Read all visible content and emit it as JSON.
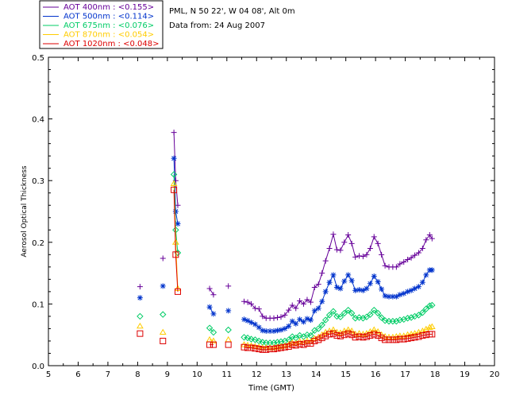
{
  "header": {
    "location": "PML, N 50 22', W 04 08', Alt 0m",
    "date_line": "Data from: 24 Aug 2007"
  },
  "legend": [
    {
      "text": "AOT  400nm : <0.155>",
      "color": "#660099"
    },
    {
      "text": "AOT  500nm : <0.114>",
      "color": "#0033cc"
    },
    {
      "text": "AOT  675nm : <0.076>",
      "color": "#00cc66"
    },
    {
      "text": "AOT  870nm : <0.054>",
      "color": "#ffcc00"
    },
    {
      "text": "AOT 1020nm : <0.048>",
      "color": "#dd0000"
    }
  ],
  "chart_data": {
    "type": "scatter",
    "title": "",
    "xlabel": "Time (GMT)",
    "ylabel": "Aerosol Optical Thickness",
    "xlim": [
      5,
      20
    ],
    "ylim": [
      0.0,
      0.5
    ],
    "xticks": [
      "5",
      "6",
      "7",
      "8",
      "9",
      "10",
      "11",
      "12",
      "13",
      "14",
      "15",
      "16",
      "17",
      "18",
      "19",
      "20"
    ],
    "yticks": [
      "0.0",
      "0.1",
      "0.2",
      "0.3",
      "0.4",
      "0.5"
    ],
    "grid": false,
    "series": [
      {
        "name": "AOT  400nm : <0.155>",
        "color": "#660099",
        "marker": "plus",
        "x": [
          8.08,
          8.85,
          9.22,
          9.28,
          9.35,
          10.42,
          10.55,
          11.05,
          11.58,
          11.7,
          11.82,
          11.95,
          12.08,
          12.2,
          12.32,
          12.45,
          12.58,
          12.7,
          12.82,
          12.95,
          13.08,
          13.2,
          13.32,
          13.45,
          13.58,
          13.7,
          13.82,
          13.95,
          14.08,
          14.2,
          14.32,
          14.45,
          14.58,
          14.7,
          14.82,
          14.95,
          15.08,
          15.2,
          15.32,
          15.45,
          15.58,
          15.7,
          15.82,
          15.95,
          16.08,
          16.2,
          16.32,
          16.45,
          16.58,
          16.7,
          16.82,
          16.95,
          17.08,
          17.2,
          17.32,
          17.45,
          17.58,
          17.7,
          17.82,
          17.9
        ],
        "y": [
          0.128,
          0.174,
          0.378,
          0.3,
          0.26,
          0.125,
          0.115,
          0.129,
          0.104,
          0.103,
          0.1,
          0.093,
          0.092,
          0.08,
          0.077,
          0.077,
          0.077,
          0.078,
          0.079,
          0.082,
          0.09,
          0.098,
          0.093,
          0.105,
          0.1,
          0.107,
          0.103,
          0.127,
          0.132,
          0.15,
          0.17,
          0.19,
          0.213,
          0.188,
          0.187,
          0.2,
          0.212,
          0.198,
          0.176,
          0.178,
          0.177,
          0.18,
          0.19,
          0.209,
          0.198,
          0.18,
          0.162,
          0.16,
          0.16,
          0.16,
          0.165,
          0.168,
          0.172,
          0.175,
          0.179,
          0.183,
          0.19,
          0.204,
          0.212,
          0.206
        ]
      },
      {
        "name": "AOT  500nm : <0.114>",
        "color": "#0033cc",
        "marker": "asterisk",
        "x": [
          8.08,
          8.85,
          9.22,
          9.28,
          9.35,
          10.42,
          10.55,
          11.05,
          11.58,
          11.7,
          11.82,
          11.95,
          12.08,
          12.2,
          12.32,
          12.45,
          12.58,
          12.7,
          12.82,
          12.95,
          13.08,
          13.2,
          13.32,
          13.45,
          13.58,
          13.7,
          13.82,
          13.95,
          14.08,
          14.2,
          14.32,
          14.45,
          14.58,
          14.7,
          14.82,
          14.95,
          15.08,
          15.2,
          15.32,
          15.45,
          15.58,
          15.7,
          15.82,
          15.95,
          16.08,
          16.2,
          16.32,
          16.45,
          16.58,
          16.7,
          16.82,
          16.95,
          17.08,
          17.2,
          17.32,
          17.45,
          17.58,
          17.7,
          17.82,
          17.9
        ],
        "y": [
          0.11,
          0.129,
          0.336,
          0.25,
          0.23,
          0.095,
          0.084,
          0.089,
          0.075,
          0.073,
          0.07,
          0.067,
          0.062,
          0.057,
          0.056,
          0.056,
          0.056,
          0.057,
          0.058,
          0.06,
          0.064,
          0.072,
          0.068,
          0.075,
          0.071,
          0.076,
          0.074,
          0.089,
          0.093,
          0.104,
          0.12,
          0.135,
          0.147,
          0.127,
          0.125,
          0.137,
          0.147,
          0.138,
          0.122,
          0.123,
          0.122,
          0.125,
          0.133,
          0.145,
          0.136,
          0.124,
          0.113,
          0.112,
          0.112,
          0.112,
          0.115,
          0.117,
          0.12,
          0.122,
          0.125,
          0.128,
          0.135,
          0.147,
          0.155,
          0.155
        ]
      },
      {
        "name": "AOT  675nm : <0.076>",
        "color": "#00cc66",
        "marker": "diamond",
        "x": [
          8.08,
          8.85,
          9.22,
          9.28,
          9.35,
          10.42,
          10.55,
          11.05,
          11.58,
          11.7,
          11.82,
          11.95,
          12.08,
          12.2,
          12.32,
          12.45,
          12.58,
          12.7,
          12.82,
          12.95,
          13.08,
          13.2,
          13.32,
          13.45,
          13.58,
          13.7,
          13.82,
          13.95,
          14.08,
          14.2,
          14.32,
          14.45,
          14.58,
          14.7,
          14.82,
          14.95,
          15.08,
          15.2,
          15.32,
          15.45,
          15.58,
          15.7,
          15.82,
          15.95,
          16.08,
          16.2,
          16.32,
          16.45,
          16.58,
          16.7,
          16.82,
          16.95,
          17.08,
          17.2,
          17.32,
          17.45,
          17.58,
          17.7,
          17.82,
          17.9
        ],
        "y": [
          0.08,
          0.083,
          0.31,
          0.22,
          0.183,
          0.061,
          0.054,
          0.058,
          0.046,
          0.045,
          0.043,
          0.042,
          0.04,
          0.038,
          0.037,
          0.037,
          0.037,
          0.038,
          0.039,
          0.04,
          0.042,
          0.047,
          0.045,
          0.049,
          0.047,
          0.05,
          0.049,
          0.057,
          0.06,
          0.066,
          0.074,
          0.082,
          0.088,
          0.08,
          0.079,
          0.085,
          0.09,
          0.085,
          0.077,
          0.078,
          0.077,
          0.079,
          0.083,
          0.09,
          0.085,
          0.078,
          0.073,
          0.072,
          0.072,
          0.072,
          0.074,
          0.075,
          0.077,
          0.078,
          0.08,
          0.082,
          0.086,
          0.092,
          0.097,
          0.098
        ]
      },
      {
        "name": "AOT  870nm : <0.054>",
        "color": "#ffcc00",
        "marker": "triangle",
        "x": [
          8.08,
          8.85,
          9.22,
          9.28,
          9.35,
          10.42,
          10.55,
          11.05,
          11.58,
          11.7,
          11.82,
          11.95,
          12.08,
          12.2,
          12.32,
          12.45,
          12.58,
          12.7,
          12.82,
          12.95,
          13.08,
          13.2,
          13.32,
          13.45,
          13.58,
          13.7,
          13.82,
          13.95,
          14.08,
          14.2,
          14.32,
          14.45,
          14.58,
          14.7,
          14.82,
          14.95,
          15.08,
          15.2,
          15.32,
          15.45,
          15.58,
          15.7,
          15.82,
          15.95,
          16.08,
          16.2,
          16.32,
          16.45,
          16.58,
          16.7,
          16.82,
          16.95,
          17.08,
          17.2,
          17.32,
          17.45,
          17.58,
          17.7,
          17.82,
          17.9
        ],
        "y": [
          0.064,
          0.054,
          0.295,
          0.2,
          0.125,
          0.042,
          0.04,
          0.042,
          0.034,
          0.033,
          0.032,
          0.031,
          0.03,
          0.029,
          0.029,
          0.029,
          0.029,
          0.03,
          0.031,
          0.032,
          0.034,
          0.037,
          0.036,
          0.039,
          0.038,
          0.04,
          0.039,
          0.044,
          0.046,
          0.05,
          0.054,
          0.056,
          0.058,
          0.054,
          0.053,
          0.056,
          0.058,
          0.056,
          0.051,
          0.052,
          0.051,
          0.052,
          0.055,
          0.058,
          0.055,
          0.05,
          0.047,
          0.046,
          0.046,
          0.047,
          0.048,
          0.048,
          0.05,
          0.051,
          0.052,
          0.054,
          0.056,
          0.059,
          0.062,
          0.063
        ]
      },
      {
        "name": "AOT 1020nm : <0.048>",
        "color": "#dd0000",
        "marker": "square",
        "x": [
          8.08,
          8.85,
          9.22,
          9.28,
          9.35,
          10.42,
          10.55,
          11.05,
          11.58,
          11.7,
          11.82,
          11.95,
          12.08,
          12.2,
          12.32,
          12.45,
          12.58,
          12.7,
          12.82,
          12.95,
          13.08,
          13.2,
          13.32,
          13.45,
          13.58,
          13.7,
          13.82,
          13.95,
          14.08,
          14.2,
          14.32,
          14.45,
          14.58,
          14.7,
          14.82,
          14.95,
          15.08,
          15.2,
          15.32,
          15.45,
          15.58,
          15.7,
          15.82,
          15.95,
          16.08,
          16.2,
          16.32,
          16.45,
          16.58,
          16.7,
          16.82,
          16.95,
          17.08,
          17.2,
          17.32,
          17.45,
          17.58,
          17.7,
          17.82,
          17.9
        ],
        "y": [
          0.052,
          0.04,
          0.285,
          0.18,
          0.12,
          0.034,
          0.034,
          0.034,
          0.03,
          0.029,
          0.029,
          0.028,
          0.027,
          0.026,
          0.026,
          0.027,
          0.027,
          0.028,
          0.029,
          0.03,
          0.031,
          0.034,
          0.033,
          0.035,
          0.034,
          0.036,
          0.036,
          0.04,
          0.042,
          0.045,
          0.048,
          0.051,
          0.052,
          0.049,
          0.048,
          0.05,
          0.052,
          0.05,
          0.046,
          0.047,
          0.046,
          0.047,
          0.049,
          0.051,
          0.049,
          0.045,
          0.042,
          0.042,
          0.042,
          0.042,
          0.043,
          0.043,
          0.044,
          0.045,
          0.046,
          0.047,
          0.049,
          0.05,
          0.051,
          0.051
        ]
      }
    ]
  }
}
